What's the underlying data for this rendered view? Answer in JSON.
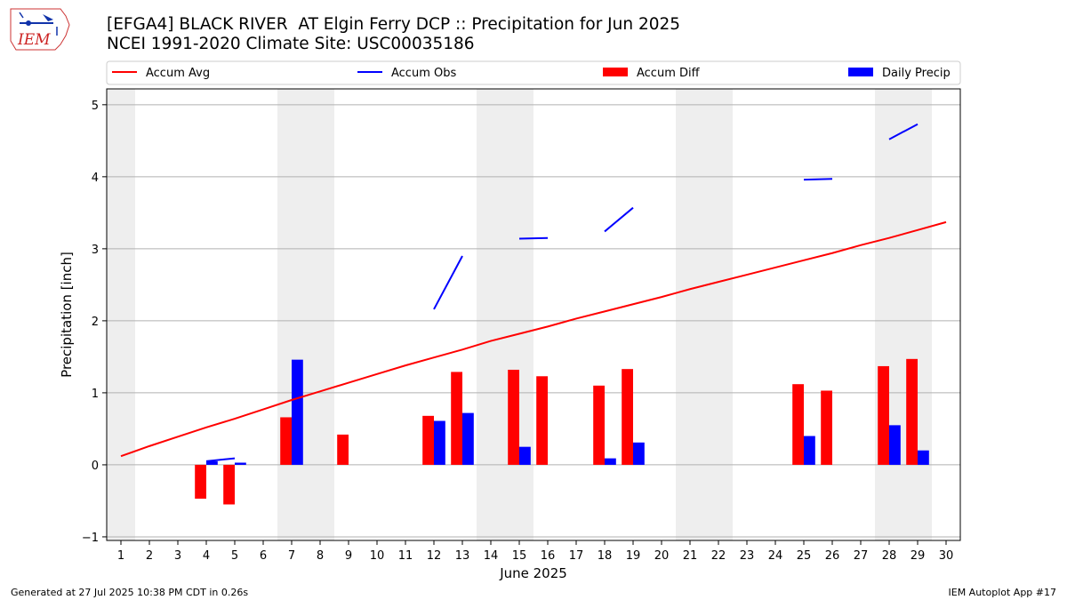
{
  "header": {
    "title": "[EFGA4] BLACK RIVER  AT Elgin Ferry DCP :: Precipitation for Jun 2025",
    "subtitle": "NCEI 1991-2020 Climate Site: USC00035186",
    "logo_text": "IEM"
  },
  "footer": {
    "generated": "Generated at 27 Jul 2025 10:38 PM CDT in 0.26s",
    "app": "IEM Autoplot App #17"
  },
  "chart_data": {
    "type": "bar",
    "xlabel": "June 2025",
    "ylabel": "Precipitation [inch]",
    "x": [
      1,
      2,
      3,
      4,
      5,
      6,
      7,
      8,
      9,
      10,
      11,
      12,
      13,
      14,
      15,
      16,
      17,
      18,
      19,
      20,
      21,
      22,
      23,
      24,
      25,
      26,
      27,
      28,
      29,
      30
    ],
    "ylim": [
      -1.05,
      5.22
    ],
    "yticks": [
      -1,
      0,
      1,
      2,
      3,
      4,
      5
    ],
    "grid": "horizontal",
    "legend_placement": "top (above plot)",
    "weekend_shading": [
      [
        0.5,
        1.5
      ],
      [
        6.5,
        8.5
      ],
      [
        13.5,
        15.5
      ],
      [
        20.5,
        22.5
      ],
      [
        27.5,
        29.5
      ]
    ],
    "series": [
      {
        "name": "Accum Avg",
        "kind": "line",
        "color": "#ff0000",
        "values": [
          0.12,
          0.26,
          0.39,
          0.52,
          0.64,
          0.77,
          0.9,
          1.02,
          1.14,
          1.26,
          1.38,
          1.49,
          1.6,
          1.72,
          1.82,
          1.92,
          2.03,
          2.13,
          2.23,
          2.33,
          2.44,
          2.54,
          2.64,
          2.74,
          2.84,
          2.94,
          3.05,
          3.15,
          3.26,
          3.37
        ]
      },
      {
        "name": "Accum Obs",
        "kind": "line",
        "color": "#0000ff",
        "segments": [
          [
            [
              4,
              0.05
            ],
            [
              5,
              0.09
            ]
          ],
          [
            [
              12,
              2.16
            ],
            [
              13,
              2.9
            ]
          ],
          [
            [
              15,
              3.14
            ],
            [
              16,
              3.15
            ]
          ],
          [
            [
              18,
              3.24
            ],
            [
              19,
              3.57
            ]
          ],
          [
            [
              25,
              3.96
            ],
            [
              26,
              3.97
            ]
          ],
          [
            [
              28,
              4.52
            ],
            [
              29,
              4.73
            ]
          ]
        ]
      },
      {
        "name": "Accum Diff",
        "kind": "bar",
        "color": "#ff0000",
        "values": [
          0,
          0,
          0,
          -0.47,
          -0.55,
          0,
          0.66,
          0,
          0.42,
          0,
          0,
          0.68,
          1.29,
          0,
          1.32,
          1.23,
          0,
          1.1,
          1.33,
          0,
          0,
          0,
          0,
          0,
          1.12,
          1.03,
          0,
          1.37,
          1.47,
          0
        ]
      },
      {
        "name": "Daily Precip",
        "kind": "bar",
        "color": "#0000ff",
        "values": [
          0,
          0,
          0,
          0.05,
          0.03,
          0,
          1.46,
          0,
          0,
          0,
          0,
          0.61,
          0.72,
          0,
          0.25,
          0,
          0,
          0.09,
          0.31,
          0,
          0,
          0,
          0,
          0,
          0.4,
          0,
          0,
          0.55,
          0.2,
          0
        ]
      }
    ]
  }
}
